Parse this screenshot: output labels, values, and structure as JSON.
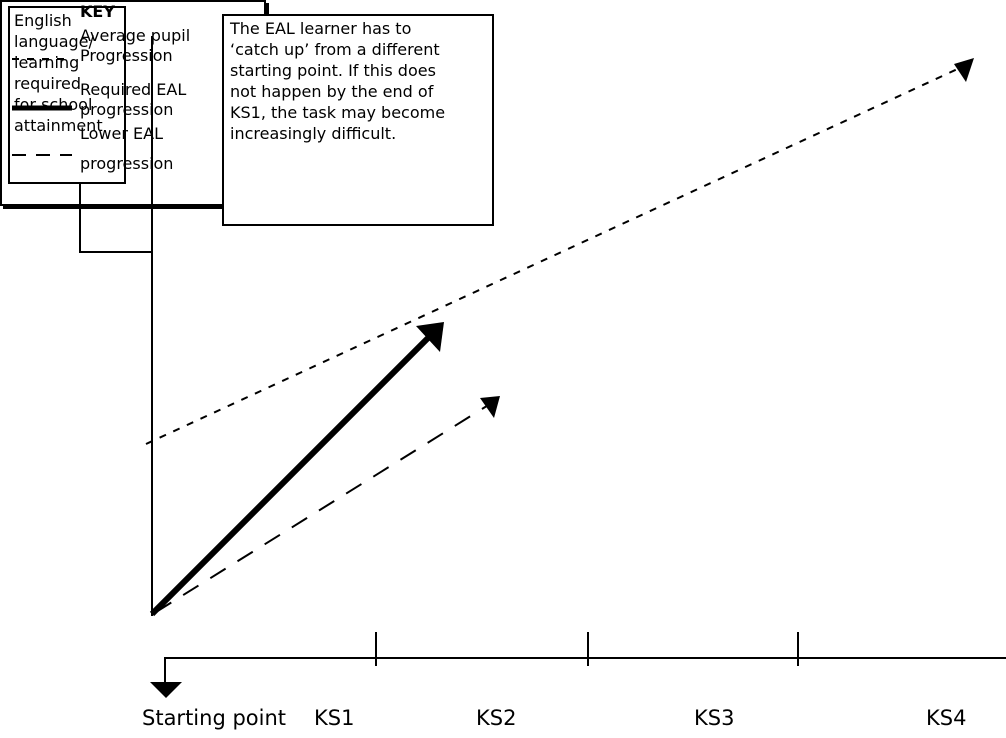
{
  "y_axis_label_lines": [
    "English",
    "language/",
    "learning",
    "required",
    "for school",
    "attainment"
  ],
  "note_lines": [
    "The EAL learner has to",
    "‘catch up’ from a different",
    "starting point. If this does",
    "not happen by the end of",
    "KS1, the task may become",
    "increasingly difficult."
  ],
  "key": {
    "title": "KEY",
    "items": [
      {
        "style": "short-dash",
        "line1": "Average pupil",
        "line2": "Progression"
      },
      {
        "style": "thick-solid",
        "line1": "Required EAL",
        "line2": "progression"
      },
      {
        "style": "long-dash",
        "line1": "Lower EAL",
        "line2": "progression"
      }
    ]
  },
  "x_axis_labels": {
    "start": "Starting point",
    "ks1": "KS1",
    "ks2": "KS2",
    "ks3": "KS3",
    "ks4": "KS4"
  }
}
